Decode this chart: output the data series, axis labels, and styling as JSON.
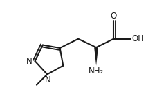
{
  "bg_color": "#ffffff",
  "line_color": "#1a1a1a",
  "line_width": 1.5,
  "font_size": 8.5,
  "fig_width": 2.28,
  "fig_height": 1.4,
  "dpi": 100,
  "xlim": [
    0.0,
    7.5
  ],
  "ylim": [
    0.8,
    5.5
  ]
}
